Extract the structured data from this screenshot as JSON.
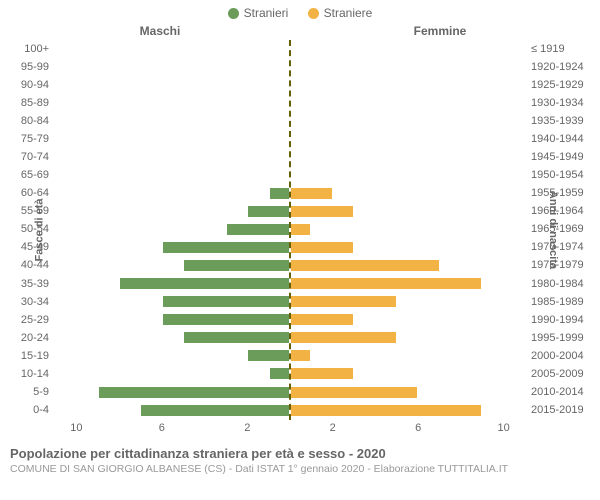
{
  "chart": {
    "type": "population-pyramid",
    "legend": {
      "male": {
        "label": "Stranieri",
        "color": "#6c9c5a"
      },
      "female": {
        "label": "Straniere",
        "color": "#f2b344"
      }
    },
    "headers": {
      "left": "Maschi",
      "right": "Femmine"
    },
    "yaxis_left_title": "Fasce di età",
    "yaxis_right_title": "Anni di nascita",
    "xlim": 11,
    "xticks_left": [
      10,
      6,
      2
    ],
    "xticks_right": [
      2,
      6,
      10
    ],
    "centerline_color": "#676000",
    "background_color": "#ffffff",
    "text_color": "#666666",
    "label_fontsize": 11,
    "header_fontsize": 12,
    "bar_colors": {
      "male": "#6c9c5a",
      "female": "#f2b344"
    },
    "rows": [
      {
        "age": "100+",
        "year": "≤ 1919",
        "m": 0,
        "f": 0
      },
      {
        "age": "95-99",
        "year": "1920-1924",
        "m": 0,
        "f": 0
      },
      {
        "age": "90-94",
        "year": "1925-1929",
        "m": 0,
        "f": 0
      },
      {
        "age": "85-89",
        "year": "1930-1934",
        "m": 0,
        "f": 0
      },
      {
        "age": "80-84",
        "year": "1935-1939",
        "m": 0,
        "f": 0
      },
      {
        "age": "75-79",
        "year": "1940-1944",
        "m": 0,
        "f": 0
      },
      {
        "age": "70-74",
        "year": "1945-1949",
        "m": 0,
        "f": 0
      },
      {
        "age": "65-69",
        "year": "1950-1954",
        "m": 0,
        "f": 0
      },
      {
        "age": "60-64",
        "year": "1955-1959",
        "m": 1,
        "f": 2
      },
      {
        "age": "55-59",
        "year": "1960-1964",
        "m": 2,
        "f": 3
      },
      {
        "age": "50-54",
        "year": "1965-1969",
        "m": 3,
        "f": 1
      },
      {
        "age": "45-49",
        "year": "1970-1974",
        "m": 6,
        "f": 3
      },
      {
        "age": "40-44",
        "year": "1975-1979",
        "m": 5,
        "f": 7
      },
      {
        "age": "35-39",
        "year": "1980-1984",
        "m": 8,
        "f": 9
      },
      {
        "age": "30-34",
        "year": "1985-1989",
        "m": 6,
        "f": 5
      },
      {
        "age": "25-29",
        "year": "1990-1994",
        "m": 6,
        "f": 3
      },
      {
        "age": "20-24",
        "year": "1995-1999",
        "m": 5,
        "f": 5
      },
      {
        "age": "15-19",
        "year": "2000-2004",
        "m": 2,
        "f": 1
      },
      {
        "age": "10-14",
        "year": "2005-2009",
        "m": 1,
        "f": 3
      },
      {
        "age": "5-9",
        "year": "2010-2014",
        "m": 9,
        "f": 6
      },
      {
        "age": "0-4",
        "year": "2015-2019",
        "m": 7,
        "f": 9
      }
    ]
  },
  "footer": {
    "title": "Popolazione per cittadinanza straniera per età e sesso - 2020",
    "subtitle": "COMUNE DI SAN GIORGIO ALBANESE (CS) - Dati ISTAT 1° gennaio 2020 - Elaborazione TUTTITALIA.IT"
  }
}
